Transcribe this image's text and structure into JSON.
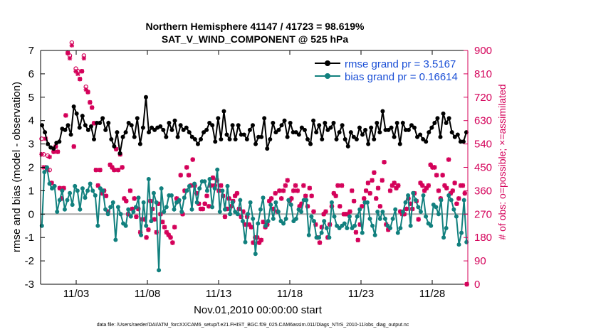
{
  "chart_data": {
    "type": "line",
    "title": "Northern Hemisphere 41147 / 41723 = 98.619%",
    "subtitle": "SAT_V_WIND_COMPONENT @ 525 hPa",
    "xlabel": "Nov.01,2010 00:00:00 start",
    "ylabel": "rmse and bias (model - observation)",
    "ylabel_right": "# of obs: o=possible; ×=assimilated",
    "footnote": "data file: /Users/raeder/DAI/ATM_forcXX/CAM6_setup/f.e21.FHIST_BGC.f09_025.CAM6assim.011/Diags_NTrS_2010-11/obs_diag_output.nc",
    "xlim": [
      0.5,
      30.5
    ],
    "ylim": [
      -3,
      7
    ],
    "ylim_right": [
      0,
      900
    ],
    "x_ticks": [
      {
        "x": 3,
        "label": "11/03"
      },
      {
        "x": 8,
        "label": "11/08"
      },
      {
        "x": 13,
        "label": "11/13"
      },
      {
        "x": 18,
        "label": "11/18"
      },
      {
        "x": 23,
        "label": "11/23"
      },
      {
        "x": 28,
        "label": "11/28"
      }
    ],
    "y_ticks": [
      "-3",
      "-2",
      "-1",
      "0",
      "1",
      "2",
      "3",
      "4",
      "5",
      "6",
      "7"
    ],
    "y_ticks_right": [
      "0",
      "90",
      "180",
      "270",
      "360",
      "450",
      "540",
      "630",
      "720",
      "810",
      "900"
    ],
    "legend_position": "top-right",
    "colors": {
      "rmse": "#000000",
      "bias": "#11807e",
      "obs": "#d40059",
      "zero_line": "#a8a8a8",
      "legend_text": "#1a4fd6"
    },
    "series": [
      {
        "name": "rmse grand pr = 3.5167",
        "color": "#000000",
        "values": [
          3.8,
          3.5,
          3.0,
          2.85,
          2.8,
          3.05,
          3.1,
          3.65,
          3.6,
          3.8,
          3.4,
          4.6,
          4.3,
          3.7,
          4.2,
          3.8,
          3.6,
          3.75,
          3.2,
          3.9,
          3.9,
          4.1,
          3.6,
          3.9,
          3.2,
          2.9,
          3.5,
          2.6,
          3.3,
          3.5,
          3.9,
          3.8,
          3.3,
          4.1,
          3.0,
          3.7,
          5.0,
          3.5,
          3.7,
          3.6,
          3.7,
          3.75,
          3.6,
          3.3,
          3.9,
          3.6,
          4.0,
          3.3,
          3.8,
          3.6,
          3.7,
          3.5,
          3.3,
          3.2,
          3.0,
          3.2,
          3.5,
          3.6,
          3.9,
          3.8,
          3.1,
          4.1,
          3.2,
          4.4,
          3.4,
          3.2,
          3.8,
          3.2,
          3.8,
          3.4,
          3.4,
          3.2,
          3.6,
          3.8,
          3.0,
          3.3,
          3.3,
          4.1,
          2.8,
          3.2,
          3.9,
          3.5,
          3.6,
          3.8,
          4.0,
          3.3,
          3.9,
          3.5,
          3.5,
          3.4,
          3.7,
          3.6,
          3.2,
          3.0,
          4.0,
          3.5,
          3.8,
          3.2,
          3.9,
          3.6,
          3.7,
          3.9,
          3.2,
          3.5,
          3.8,
          3.2,
          2.9,
          3.5,
          3.3,
          3.2,
          3.7,
          3.4,
          3.6,
          3.0,
          3.7,
          3.2,
          3.9,
          3.5,
          4.4,
          3.6,
          3.6,
          3.7,
          3.3,
          3.9,
          3.0,
          3.9,
          3.6,
          3.6,
          3.8,
          3.7,
          3.3,
          3.4,
          3.2,
          3.1,
          3.5,
          3.7,
          3.9,
          4.1,
          3.3,
          4.3,
          3.9,
          4.1,
          3.5,
          3.3,
          3.4,
          3.1,
          3.1,
          3.5
        ]
      },
      {
        "name": "bias grand pr = 0.16614",
        "color": "#11807e",
        "values": [
          -0.5,
          1.8,
          2.0,
          1.3,
          1.1,
          1.2,
          0.1,
          0.6,
          1.0,
          0.2,
          0.6,
          0.9,
          0.4,
          1.2,
          1.0,
          0.2,
          1.1,
          0.7,
          1.0,
          1.3,
          1.0,
          0.8,
          -0.5,
          1.1,
          1.0,
          0.2,
          0.0,
          0.3,
          0.5,
          -1.1,
          0.3,
          0.0,
          -0.4,
          -0.5,
          0.2,
          -0.1,
          0.1,
          0.3,
          0.7,
          -0.9,
          0.5,
          -0.5,
          1.5,
          -0.3,
          0.9,
          0.5,
          -2.4,
          1.1,
          0.1,
          0.3,
          0.8,
          0.8,
          0.2,
          0.5,
          0.6,
          0.1,
          0.7,
          1.0,
          1.2,
          0.2,
          1.3,
          0.5,
          1.1,
          1.4,
          1.4,
          1.0,
          1.5,
          0.3,
          1.1,
          1.9,
          0.1,
          1.0,
          0.2,
          1.2,
          0.0,
          0.5,
          0.1,
          0.0,
          0.6,
          -0.3,
          -1.2,
          0.0,
          0.5,
          -0.2,
          -1.7,
          -0.4,
          0.2,
          0.7,
          -0.5,
          -0.3,
          0.4,
          -0.2,
          0.5,
          0.1,
          -0.3,
          -0.4,
          -0.2,
          0.6,
          0.4,
          -0.3,
          -0.2,
          0.2,
          0.1,
          0.6,
          0.6,
          -0.9,
          -0.1,
          -0.3,
          -1.0,
          -1.0,
          -0.8,
          -0.3,
          -0.6,
          -1.0,
          0.5,
          -0.1,
          -0.5,
          -0.6,
          -0.5,
          -0.4,
          -0.6,
          -0.1,
          -0.6,
          -0.5,
          -0.1,
          0.2,
          -0.8,
          0.5,
          0.5,
          -0.2,
          -0.5,
          -0.9,
          0.1,
          -0.2,
          0.1,
          -0.2,
          -0.5,
          -0.6,
          -0.2,
          0.2,
          -0.8,
          -0.6,
          0.1,
          0.5,
          0.8,
          -0.5,
          0.9,
          0.6,
          0.3,
          0.1,
          0.8,
          -0.1,
          -0.4,
          -0.5,
          0.4,
          0.3,
          0.0,
          0.6,
          -1.0,
          -0.6,
          0.8,
          0.6,
          0.2,
          -0.1,
          -1.3,
          -0.8,
          0.6,
          -1.2
        ]
      }
    ],
    "obs_possible": [
      560,
      500,
      450,
      495,
      440,
      390,
      510,
      530,
      510,
      370,
      330,
      370,
      650,
      890,
      880,
      930,
      530,
      830,
      820,
      790,
      820,
      880,
      760,
      740,
      700,
      680,
      620,
      440,
      380,
      440,
      350,
      360,
      340,
      280,
      460,
      450,
      440,
      520,
      440,
      500,
      450,
      330,
      320,
      270,
      360,
      290,
      330,
      260,
      290,
      200,
      250,
      250,
      180,
      210,
      320,
      290,
      250,
      200,
      310,
      270,
      240,
      220,
      200,
      190,
      180,
      160,
      220,
      330,
      320,
      420,
      270,
      360,
      450,
      420,
      380,
      480,
      380,
      350,
      310,
      290,
      290,
      310,
      340,
      300,
      380,
      410,
      380,
      400,
      360,
      380,
      340,
      260,
      290,
      330,
      300,
      320,
      340,
      350,
      290,
      260,
      280,
      230,
      260,
      230,
      220,
      160,
      180,
      180,
      160,
      170,
      240,
      220,
      230,
      320,
      330,
      290,
      350,
      280,
      360,
      330,
      360,
      380,
      400,
      320,
      330,
      360,
      380,
      360,
      300,
      310,
      380,
      340,
      300,
      370,
      340,
      280,
      230,
      180,
      160,
      220,
      270,
      280,
      180,
      230,
      300,
      350,
      340,
      380,
      300,
      380,
      270,
      270,
      270,
      280,
      360,
      320,
      200,
      170,
      230,
      300,
      330,
      360,
      390,
      350,
      400,
      430,
      330,
      370,
      300,
      400,
      470,
      230,
      210,
      360,
      380,
      390,
      370,
      380,
      280,
      270,
      270,
      290,
      330,
      310,
      290,
      350,
      320,
      250,
      390,
      380,
      360,
      370,
      380,
      460,
      450,
      450,
      420,
      360,
      330,
      420,
      380,
      370,
      480,
      350,
      360,
      390,
      310,
      330,
      380,
      380,
      350,
      0
    ],
    "obs_assimilated": [
      500,
      450,
      560,
      440,
      490,
      390,
      510,
      530,
      510,
      370,
      330,
      370,
      650,
      890,
      870,
      920,
      530,
      820,
      810,
      790,
      820,
      870,
      750,
      740,
      700,
      680,
      620,
      440,
      380,
      440,
      350,
      360,
      340,
      280,
      460,
      450,
      440,
      520,
      440,
      500,
      450,
      330,
      320,
      270,
      360,
      290,
      330,
      260,
      290,
      200,
      250,
      250,
      180,
      210,
      320,
      290,
      250,
      200,
      310,
      270,
      240,
      220,
      200,
      190,
      180,
      160,
      220,
      330,
      320,
      420,
      270,
      360,
      450,
      420,
      380,
      480,
      380,
      350,
      310,
      290,
      290,
      310,
      340,
      300,
      380,
      410,
      380,
      400,
      360,
      380,
      340,
      260,
      290,
      330,
      300,
      320,
      340,
      350,
      290,
      260,
      280,
      230,
      260,
      230,
      220,
      160,
      180,
      180,
      160,
      170,
      240,
      220,
      230,
      320,
      330,
      290,
      350,
      280,
      360,
      330,
      360,
      380,
      400,
      320,
      330,
      360,
      380,
      360,
      300,
      310,
      380,
      340,
      300,
      370,
      340,
      280,
      230,
      180,
      160,
      220,
      270,
      280,
      180,
      230,
      300,
      350,
      340,
      380,
      300,
      380,
      270,
      270,
      270,
      280,
      360,
      320,
      200,
      170,
      230,
      300,
      330,
      360,
      390,
      350,
      400,
      430,
      330,
      370,
      300,
      400,
      470,
      230,
      210,
      360,
      380,
      390,
      370,
      380,
      280,
      270,
      270,
      290,
      330,
      310,
      290,
      350,
      320,
      250,
      390,
      380,
      360,
      370,
      380,
      460,
      450,
      450,
      420,
      360,
      330,
      420,
      380,
      370,
      480,
      350,
      360,
      390,
      310,
      330,
      380,
      380,
      350,
      0
    ]
  }
}
